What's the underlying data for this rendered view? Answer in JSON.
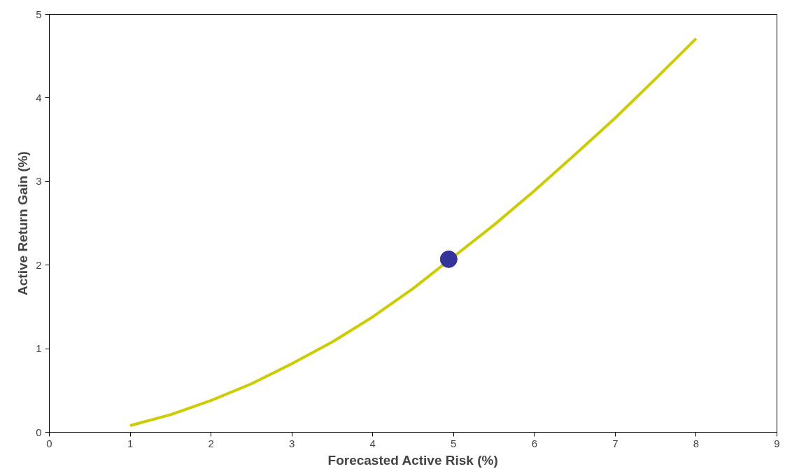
{
  "chart_data": {
    "type": "line",
    "xlabel": "Forecasted Active Risk (%)",
    "ylabel": "Active Return Gain (%)",
    "xlim": [
      0,
      9
    ],
    "ylim": [
      0,
      5
    ],
    "xticks": [
      0,
      1,
      2,
      3,
      4,
      5,
      6,
      7,
      8,
      9
    ],
    "yticks": [
      0,
      1,
      2,
      3,
      4,
      5
    ],
    "grid": false,
    "marker": "none",
    "line_style": "solid",
    "series": [
      {
        "color": "#cccc00",
        "x": [
          1,
          1.5,
          2,
          2.5,
          3,
          3.5,
          4,
          4.5,
          5,
          5.5,
          6,
          6.5,
          7,
          7.5,
          8
        ],
        "values": [
          0.08,
          0.21,
          0.38,
          0.58,
          0.82,
          1.08,
          1.38,
          1.72,
          2.1,
          2.48,
          2.89,
          3.32,
          3.76,
          4.23,
          4.71
        ]
      },
      {
        "type": "scatter",
        "color": "#333399",
        "x": [
          4.94
        ],
        "values": [
          2.07
        ],
        "marker": "circle"
      }
    ]
  }
}
